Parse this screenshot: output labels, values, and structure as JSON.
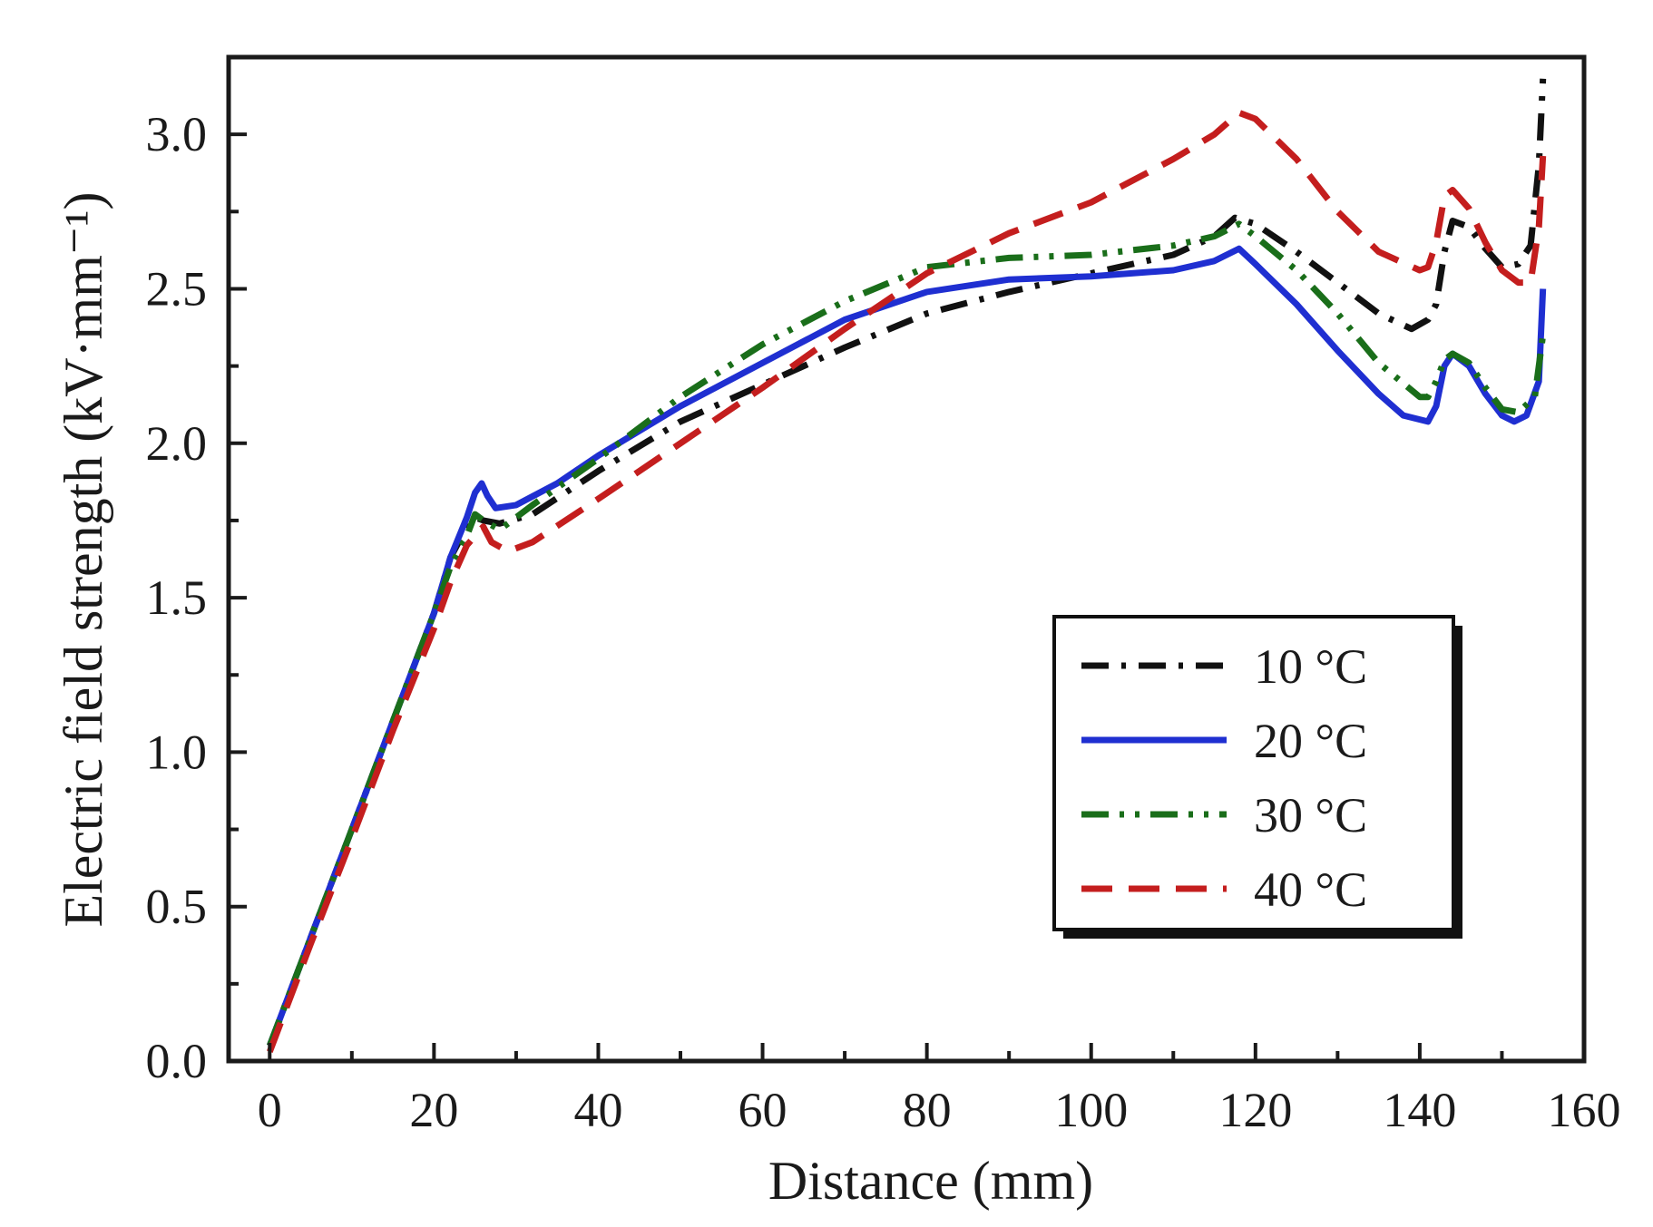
{
  "chart_data": {
    "type": "line",
    "xlabel": "Distance (mm)",
    "ylabel": "Electric field strength (kV·mm⁻¹)",
    "xlim": [
      -5,
      160
    ],
    "ylim": [
      0,
      3.25
    ],
    "xticks": [
      0,
      20,
      40,
      60,
      80,
      100,
      120,
      140,
      160
    ],
    "xtick_labels": [
      "0",
      "20",
      "40",
      "60",
      "80",
      "100",
      "120",
      "140",
      "160"
    ],
    "yticks": [
      0.0,
      0.5,
      1.0,
      1.5,
      2.0,
      2.5,
      3.0
    ],
    "ytick_labels": [
      "0.0",
      "0.5",
      "1.0",
      "1.5",
      "2.0",
      "2.5",
      "3.0"
    ],
    "grid": false,
    "legend_position": "lower-right",
    "series": [
      {
        "name": "10 °C",
        "color": "#111111",
        "dash": "dash-dot",
        "points": [
          [
            0,
            0.05
          ],
          [
            5,
            0.4
          ],
          [
            10,
            0.75
          ],
          [
            15,
            1.1
          ],
          [
            20,
            1.45
          ],
          [
            22,
            1.63
          ],
          [
            24,
            1.73
          ],
          [
            25,
            1.76
          ],
          [
            26,
            1.75
          ],
          [
            28,
            1.74
          ],
          [
            32,
            1.77
          ],
          [
            40,
            1.91
          ],
          [
            50,
            2.07
          ],
          [
            60,
            2.19
          ],
          [
            70,
            2.31
          ],
          [
            80,
            2.42
          ],
          [
            90,
            2.49
          ],
          [
            100,
            2.55
          ],
          [
            110,
            2.61
          ],
          [
            115,
            2.67
          ],
          [
            117.5,
            2.73
          ],
          [
            120,
            2.71
          ],
          [
            125,
            2.62
          ],
          [
            130,
            2.52
          ],
          [
            135,
            2.42
          ],
          [
            139,
            2.37
          ],
          [
            141,
            2.4
          ],
          [
            142,
            2.45
          ],
          [
            143,
            2.62
          ],
          [
            144,
            2.72
          ],
          [
            146,
            2.7
          ],
          [
            148,
            2.63
          ],
          [
            150,
            2.57
          ],
          [
            152,
            2.58
          ],
          [
            153.5,
            2.64
          ],
          [
            154.5,
            2.9
          ],
          [
            155,
            3.18
          ]
        ]
      },
      {
        "name": "20 °C",
        "color": "#1f2fd1",
        "dash": "solid",
        "points": [
          [
            0,
            0.05
          ],
          [
            5,
            0.4
          ],
          [
            10,
            0.75
          ],
          [
            15,
            1.1
          ],
          [
            20,
            1.45
          ],
          [
            22,
            1.63
          ],
          [
            24,
            1.76
          ],
          [
            25,
            1.84
          ],
          [
            25.8,
            1.87
          ],
          [
            26.5,
            1.83
          ],
          [
            27.5,
            1.79
          ],
          [
            30,
            1.8
          ],
          [
            35,
            1.87
          ],
          [
            40,
            1.96
          ],
          [
            50,
            2.12
          ],
          [
            60,
            2.26
          ],
          [
            70,
            2.4
          ],
          [
            80,
            2.49
          ],
          [
            90,
            2.53
          ],
          [
            100,
            2.54
          ],
          [
            110,
            2.56
          ],
          [
            115,
            2.59
          ],
          [
            118,
            2.63
          ],
          [
            120,
            2.58
          ],
          [
            125,
            2.45
          ],
          [
            130,
            2.3
          ],
          [
            135,
            2.16
          ],
          [
            138,
            2.09
          ],
          [
            141,
            2.07
          ],
          [
            142,
            2.12
          ],
          [
            143,
            2.25
          ],
          [
            144,
            2.29
          ],
          [
            146,
            2.25
          ],
          [
            148,
            2.16
          ],
          [
            150,
            2.09
          ],
          [
            151.5,
            2.07
          ],
          [
            153,
            2.09
          ],
          [
            154.5,
            2.2
          ],
          [
            155,
            2.5
          ]
        ]
      },
      {
        "name": "30 °C",
        "color": "#1a6e1a",
        "dash": "dash-dot-dot",
        "points": [
          [
            0,
            0.05
          ],
          [
            5,
            0.4
          ],
          [
            10,
            0.75
          ],
          [
            15,
            1.1
          ],
          [
            20,
            1.45
          ],
          [
            22,
            1.6
          ],
          [
            24,
            1.7
          ],
          [
            25,
            1.77
          ],
          [
            26,
            1.75
          ],
          [
            28,
            1.72
          ],
          [
            32,
            1.8
          ],
          [
            40,
            1.95
          ],
          [
            50,
            2.15
          ],
          [
            60,
            2.32
          ],
          [
            70,
            2.46
          ],
          [
            80,
            2.57
          ],
          [
            90,
            2.6
          ],
          [
            100,
            2.61
          ],
          [
            110,
            2.64
          ],
          [
            115,
            2.67
          ],
          [
            118,
            2.71
          ],
          [
            120,
            2.67
          ],
          [
            125,
            2.56
          ],
          [
            130,
            2.42
          ],
          [
            135,
            2.26
          ],
          [
            140,
            2.15
          ],
          [
            141,
            2.15
          ],
          [
            142,
            2.2
          ],
          [
            143,
            2.27
          ],
          [
            144,
            2.29
          ],
          [
            146,
            2.26
          ],
          [
            148,
            2.18
          ],
          [
            150,
            2.11
          ],
          [
            152,
            2.1
          ],
          [
            154,
            2.15
          ],
          [
            155,
            2.35
          ]
        ]
      },
      {
        "name": "40 °C",
        "color": "#c41e1e",
        "dash": "dashed",
        "points": [
          [
            0,
            0.03
          ],
          [
            5,
            0.38
          ],
          [
            10,
            0.72
          ],
          [
            15,
            1.07
          ],
          [
            20,
            1.4
          ],
          [
            22,
            1.55
          ],
          [
            24,
            1.67
          ],
          [
            26,
            1.73
          ],
          [
            27,
            1.68
          ],
          [
            29,
            1.65
          ],
          [
            32,
            1.68
          ],
          [
            40,
            1.82
          ],
          [
            50,
            2.0
          ],
          [
            60,
            2.18
          ],
          [
            70,
            2.37
          ],
          [
            80,
            2.55
          ],
          [
            90,
            2.68
          ],
          [
            100,
            2.78
          ],
          [
            110,
            2.92
          ],
          [
            115,
            3.0
          ],
          [
            118,
            3.07
          ],
          [
            120,
            3.05
          ],
          [
            125,
            2.92
          ],
          [
            130,
            2.75
          ],
          [
            135,
            2.62
          ],
          [
            140,
            2.56
          ],
          [
            141,
            2.57
          ],
          [
            142,
            2.65
          ],
          [
            143,
            2.8
          ],
          [
            144,
            2.82
          ],
          [
            146,
            2.76
          ],
          [
            148,
            2.65
          ],
          [
            150,
            2.56
          ],
          [
            152,
            2.52
          ],
          [
            153.5,
            2.52
          ],
          [
            154.5,
            2.7
          ],
          [
            155,
            2.93
          ]
        ]
      }
    ]
  }
}
